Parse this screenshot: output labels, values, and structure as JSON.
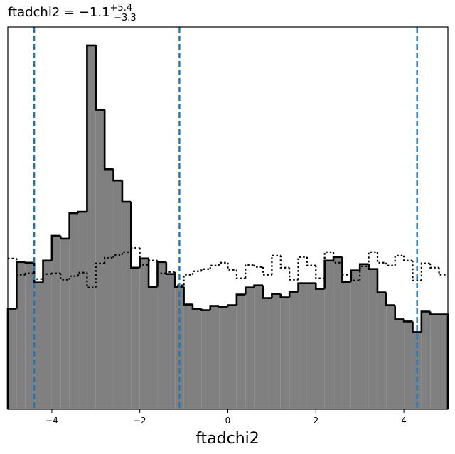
{
  "chart_data": {
    "type": "histogram",
    "title": {
      "text": "ftadchi2 = −1.1",
      "upper": "+5.4",
      "lower": "−3.3"
    },
    "xlabel": "ftadchi2",
    "xlim": [
      -5,
      5
    ],
    "ylim": [
      0,
      540
    ],
    "xticks": [
      {
        "value": -4,
        "label": "−4"
      },
      {
        "value": -2,
        "label": "−2"
      },
      0,
      2,
      4
    ],
    "bins": [
      -5,
      -4.8,
      -4.6,
      -4.4,
      -4.2,
      -4,
      -3.8,
      -3.6,
      -3.4,
      -3.2,
      -3,
      -2.8,
      -2.6,
      -2.4,
      -2.2,
      -2,
      -1.8,
      -1.6,
      -1.4,
      -1.2,
      -1,
      -0.8,
      -0.6,
      -0.4,
      -0.2,
      0,
      0.2,
      0.4,
      0.6,
      0.8,
      1,
      1.2,
      1.4,
      1.6,
      1.8,
      2,
      2.2,
      2.4,
      2.6,
      2.8,
      3,
      3.2,
      3.4,
      3.6,
      3.8,
      4,
      4.2,
      4.4,
      4.6,
      4.8,
      5
    ],
    "series": [
      {
        "color": "#808080",
        "style": "solid",
        "values": [
          142,
          208,
          207,
          179,
          210,
          245,
          241,
          277,
          279,
          514,
          423,
          339,
          323,
          293,
          200,
          213,
          173,
          208,
          191,
          173,
          148,
          142,
          140,
          146,
          145,
          147,
          162,
          172,
          175,
          157,
          163,
          158,
          166,
          178,
          178,
          170,
          210,
          215,
          180,
          196,
          205,
          198,
          165,
          147,
          127,
          124,
          109,
          138,
          134,
          134
        ]
      },
      {
        "color": "#000000",
        "style": "dotted",
        "values": [
          213,
          190,
          192,
          184,
          191,
          192,
          183,
          188,
          193,
          172,
          206,
          214,
          218,
          222,
          228,
          204,
          210,
          192,
          194,
          175,
          190,
          195,
          198,
          203,
          207,
          197,
          185,
          204,
          201,
          190,
          217,
          200,
          183,
          215,
          203,
          185,
          222,
          207,
          190,
          182,
          202,
          222,
          207,
          203,
          217,
          210,
          182,
          206,
          200,
          190
        ]
      }
    ],
    "vlines": [
      -4.4,
      -1.1,
      4.3
    ],
    "vline_color": "#1f77b4"
  }
}
